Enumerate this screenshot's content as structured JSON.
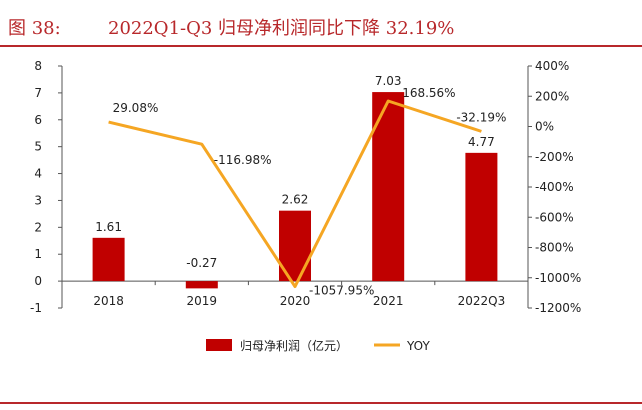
{
  "header": {
    "figure_number": "图 38:",
    "title": "2022Q1-Q3 归母净利润同比下降 32.19%"
  },
  "colors": {
    "accent": "#b8282b",
    "bar": "#c00000",
    "line": "#f5a623"
  },
  "chart_data": {
    "type": "bar",
    "categories": [
      "2018",
      "2019",
      "2020",
      "2021",
      "2022Q3"
    ],
    "series": [
      {
        "name": "归母净利润（亿元）",
        "type": "bar",
        "axis": "left",
        "values": [
          1.61,
          -0.27,
          2.62,
          7.03,
          4.77
        ],
        "labels": [
          "1.61",
          "-0.27",
          "2.62",
          "7.03",
          "4.77"
        ]
      },
      {
        "name": "YOY",
        "type": "line",
        "axis": "right",
        "values": [
          29.08,
          -116.98,
          -1057.95,
          168.56,
          -32.19
        ],
        "labels": [
          "29.08%",
          "-116.98%",
          "-1057.95%",
          "168.56%",
          "-32.19%"
        ]
      }
    ],
    "y_left": {
      "ylim": [
        -1,
        8
      ],
      "ticks": [
        8,
        7,
        6,
        5,
        4,
        3,
        2,
        1,
        0,
        -1
      ],
      "tick_labels": [
        "8",
        "7",
        "6",
        "5",
        "4",
        "3",
        "2",
        "1",
        "0",
        "-1"
      ]
    },
    "y_right": {
      "ylim": [
        -1200,
        400
      ],
      "ticks": [
        400,
        200,
        0,
        -200,
        -400,
        -600,
        -800,
        -1000,
        -1200
      ],
      "tick_labels": [
        "400%",
        "200%",
        "0%",
        "-200%",
        "-400%",
        "-600%",
        "-800%",
        "-1000%",
        "-1200%"
      ]
    },
    "legend_position": "bottom",
    "grid": false
  }
}
